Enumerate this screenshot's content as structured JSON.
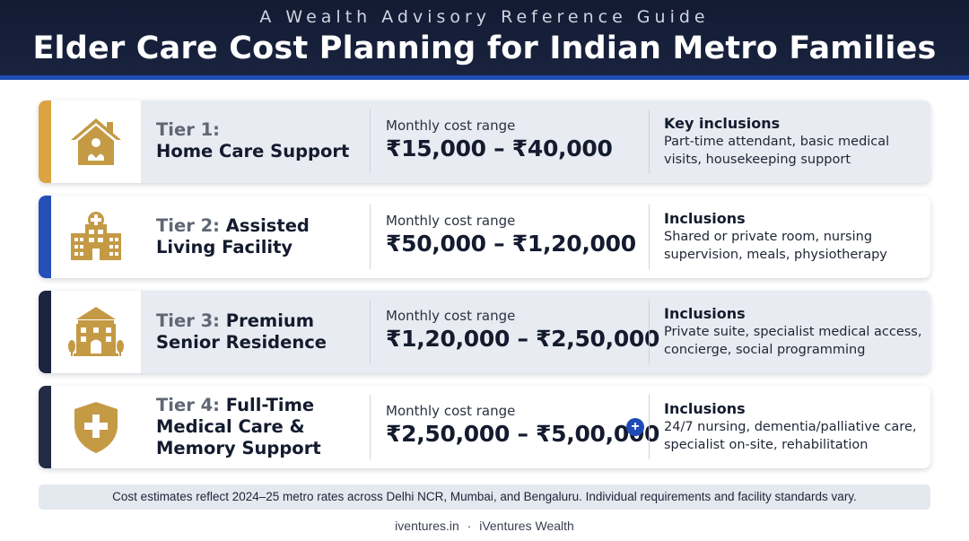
{
  "header": {
    "subtitle": "A Wealth Advisory Reference Guide",
    "title": "Elder Care Cost Planning for Indian Metro Families"
  },
  "colors": {
    "header_bg": "#131b33",
    "header_stripe": "#1e4bb5",
    "tier1_accent": "#d9a441",
    "tier2_accent": "#2450b8",
    "tier3_accent": "#1c2540",
    "tier4_accent": "#232c44",
    "icon_gold": "#c49a45"
  },
  "tiers": [
    {
      "label": "Tier 1:",
      "name": "Home Care Support",
      "icon": "home-heart-icon",
      "cost_label": "Monthly cost range",
      "cost_range": "₹15,000 – ₹40,000",
      "inclusions_label": "Key inclusions",
      "inclusions": "Part-time attendant, basic medical visits, housekeeping support"
    },
    {
      "label": "Tier 2:",
      "name": "Assisted Living Facility",
      "name_line1": "Assisted",
      "name_line2": "Living Facility",
      "icon": "hospital-building-icon",
      "cost_label": "Monthly cost range",
      "cost_range": "₹50,000 – ₹1,20,000",
      "inclusions_label": "Inclusions",
      "inclusions": "Shared or private room, nursing supervision, meals, physiotherapy"
    },
    {
      "label": "Tier 3:",
      "name": "Premium Senior Residence",
      "name_line1": "Premium",
      "name_line2": "Senior Residence",
      "icon": "residence-building-icon",
      "cost_label": "Monthly cost range",
      "cost_range": "₹1,20,000 – ₹2,50,000",
      "inclusions_label": "Inclusions",
      "inclusions": "Private suite, specialist medical access, concierge, social programming"
    },
    {
      "label": "Tier 4:",
      "name": "Full-Time Medical Care & Memory Support",
      "name_line1": "Full-Time",
      "name_line2": "Medical Care &",
      "name_line3": "Memory Support",
      "icon": "medical-shield-icon",
      "cost_label": "Monthly cost range",
      "cost_range": "₹2,50,000 – ₹5,00,000",
      "cost_badge": "+",
      "inclusions_label": "Inclusions",
      "inclusions": "24/7 nursing, dementia/palliative care, specialist on-site, rehabilitation"
    }
  ],
  "note": "Cost estimates reflect 2024–25 metro rates across Delhi NCR, Mumbai, and Bengaluru. Individual requirements and facility standards vary.",
  "footer": {
    "site": "iventures.in",
    "separator": "·",
    "brand": "iVentures Wealth"
  }
}
